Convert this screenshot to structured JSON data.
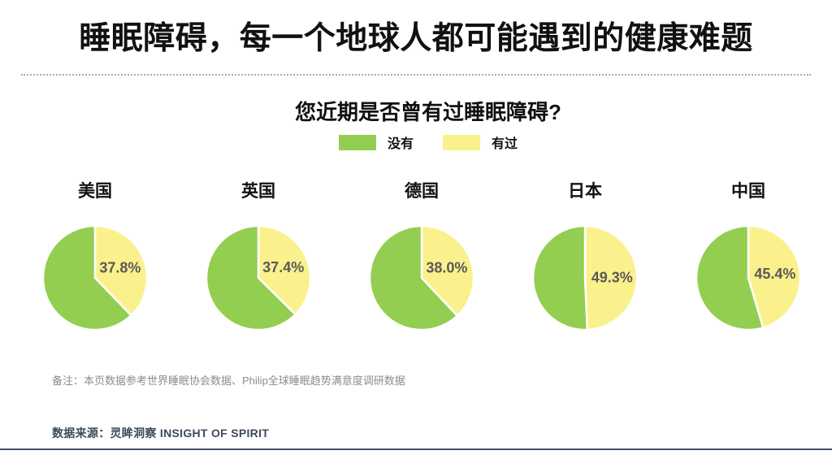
{
  "slide": {
    "title": "睡眠障碍，每一个地球人都可能遇到的健康难题",
    "note": "备注：本页数据参考世界睡眠协会数据、Philip全球睡眠趋势满意度调研数据",
    "source": "数据来源：灵眸洞察 INSIGHT OF SPIRIT"
  },
  "chart_data": {
    "type": "pie",
    "title": "您近期是否曾有过睡眠障碍?",
    "legend_position": "top",
    "legend": [
      {
        "name": "没有",
        "color": "#93CE51"
      },
      {
        "name": "有过",
        "color": "#FAF18C"
      }
    ],
    "data_label_color": "#595959",
    "slice_divider_color": "#FFFFFF",
    "start_angle_deg": 0,
    "direction": "clockwise",
    "first_slice_series": "有过",
    "pies": [
      {
        "category": "美国",
        "values": {
          "没有": 62.2,
          "有过": 37.8
        },
        "data_label": "37.8%"
      },
      {
        "category": "英国",
        "values": {
          "没有": 62.6,
          "有过": 37.4
        },
        "data_label": "37.4%"
      },
      {
        "category": "德国",
        "values": {
          "没有": 62.0,
          "有过": 38.0
        },
        "data_label": "38.0%"
      },
      {
        "category": "日本",
        "values": {
          "没有": 50.7,
          "有过": 49.3
        },
        "data_label": "49.3%"
      },
      {
        "category": "中国",
        "values": {
          "没有": 54.6,
          "有过": 45.4
        },
        "data_label": "45.4%"
      }
    ]
  },
  "rules": {
    "top_dotted_color": "#ADADAD",
    "bottom_rule_color": "#44516B"
  }
}
